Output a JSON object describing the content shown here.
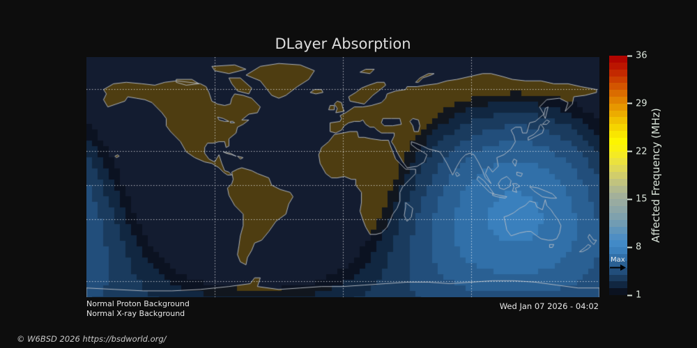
{
  "chart_data": {
    "type": "heatmap",
    "title": "DLayer Absorption",
    "projection": "equirectangular",
    "lon_range": [
      -180,
      180
    ],
    "lat_range": [
      -77.4,
      88.4
    ],
    "gridlines": {
      "lats": [
        66.5,
        23.5,
        0,
        -23.5,
        -66.5
      ],
      "lons": [
        -90,
        0,
        90
      ]
    },
    "subsolar_point": {
      "lat": -22.4,
      "lon": 120.5
    },
    "absorption": {
      "max_affected_frequency_mhz": 5.3,
      "fmax": 7.25,
      "exponent": 0.75,
      "shadow_alpha": 0.9,
      "num_map_levels": 7
    },
    "colorbar": {
      "label": "Affected Frequency (MHz)",
      "range_mhz": [
        1,
        36
      ],
      "ticks": [
        36,
        29,
        22,
        15,
        8,
        1
      ],
      "max_marker_label": "Max",
      "max_marker_value": 5.3,
      "segment_colors": [
        "#0b1220",
        "#112741",
        "#1a3b5e",
        "#224e7b",
        "#2a6093",
        "#3170a9",
        "#3a80bd",
        "#428ac7",
        "#4f8ec3",
        "#5f95bb",
        "#719cb3",
        "#7fa1ad",
        "#8ca6a7",
        "#98aba1",
        "#a3b09a",
        "#b1b98e",
        "#c1c37e",
        "#d1cd6b",
        "#dfd856",
        "#ebe23e",
        "#f4ea24",
        "#faf10f",
        "#fdf500",
        "#f9e600",
        "#f5d400",
        "#f1c100",
        "#ecac00",
        "#e79700",
        "#e18200",
        "#da6c00",
        "#d35500",
        "#cb3f00",
        "#c32900",
        "#bb1500",
        "#b10500"
      ]
    },
    "colors": {
      "background": "#0d0d0d",
      "ocean": "#131c30",
      "land": "#4e3d11",
      "coastline": "rgba(185,190,198,0.92)",
      "gridline": "rgba(255,255,255,0.75)"
    },
    "statuses": {
      "proton": "Normal Proton Background",
      "xray": "Normal X-ray Background"
    },
    "timestamp": "Wed Jan 07 2026 - 04:02",
    "copyright": "© W6BSD 2026 https://bsdworld.org/"
  }
}
